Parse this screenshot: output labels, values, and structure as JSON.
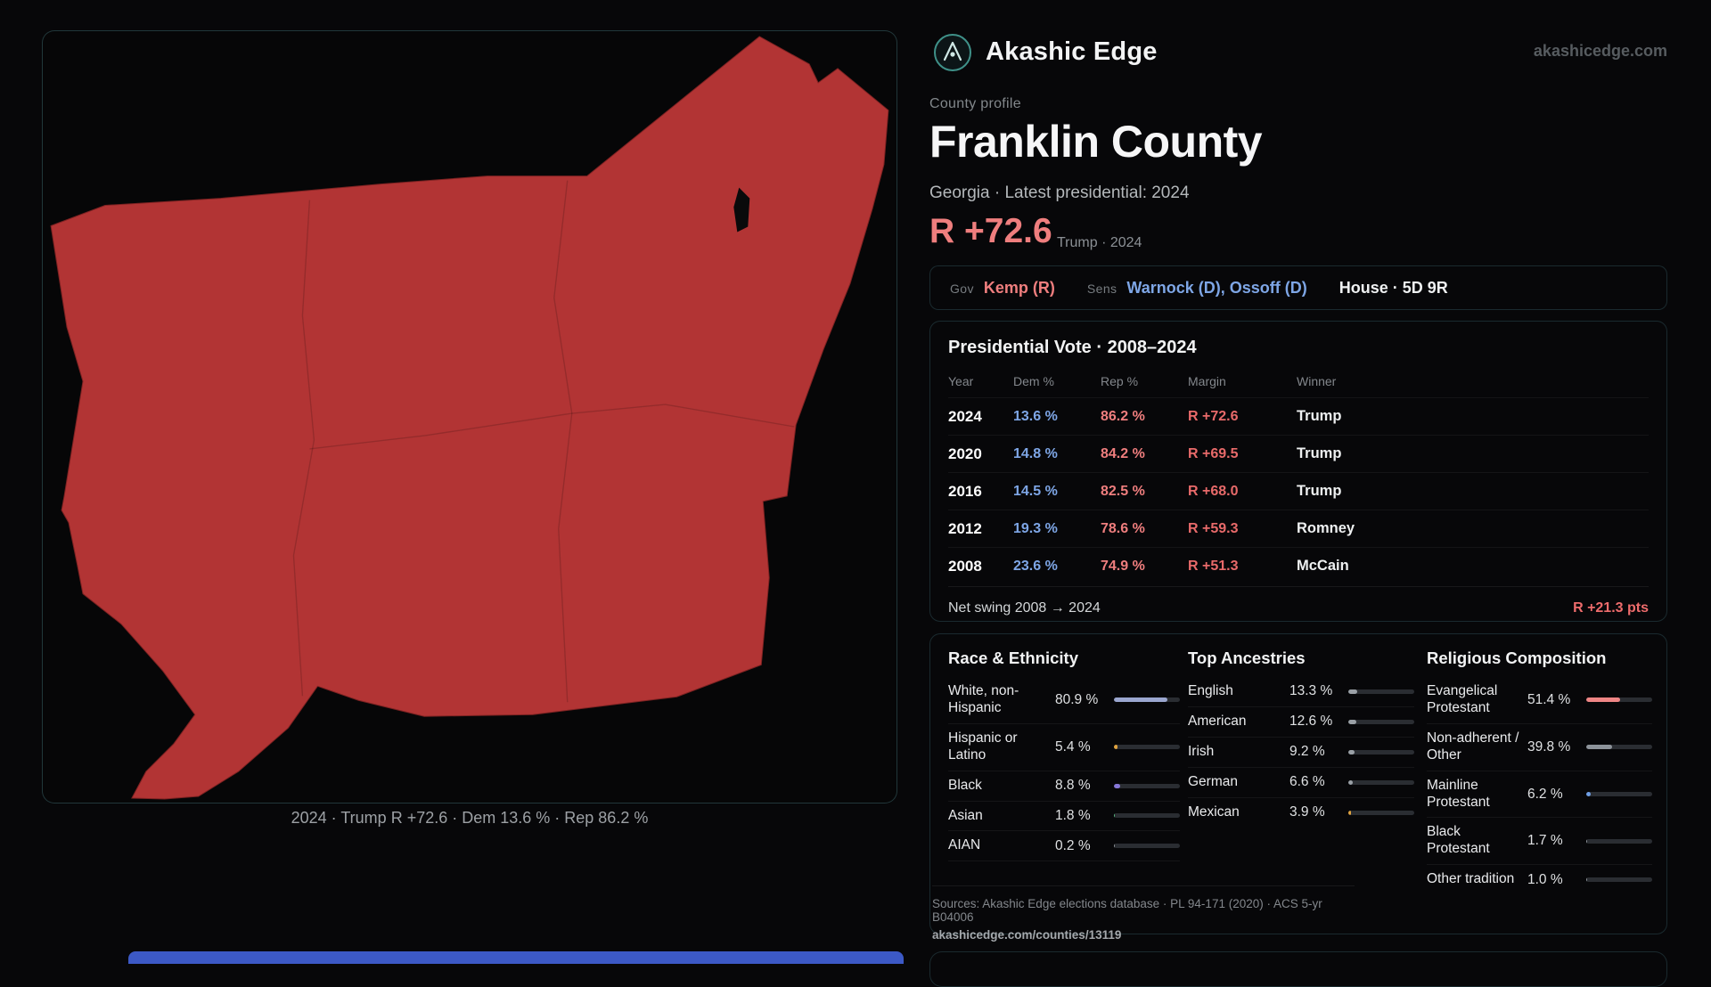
{
  "colors": {
    "rep": "#ef7e7e",
    "dem": "#7ea6e6",
    "teal": "#3f9189",
    "county": "#b23434",
    "strip": "#3c59c6"
  },
  "site": {
    "name": "Akashic Edge",
    "domain": "akashicedge.com"
  },
  "profile": {
    "kicker": "County profile",
    "title": "Franklin County",
    "subtitle": "Georgia · Latest presidential: 2024",
    "margin_big": "R +72.6",
    "margin_note": "Trump · 2024"
  },
  "officials": {
    "gov_label": "Gov",
    "gov": "Kemp (R)",
    "sens_label": "Sens",
    "sens": "Warnock (D), Ossoff (D)",
    "house": "House · 5D 9R"
  },
  "vote_table": {
    "title": "Presidential Vote · 2008–2024",
    "columns": [
      "Year",
      "Dem %",
      "Rep %",
      "Margin",
      "Winner"
    ],
    "rows": [
      {
        "year": "2024",
        "dem": "13.6 %",
        "rep": "86.2 %",
        "margin": "R +72.6",
        "winner": "Trump"
      },
      {
        "year": "2020",
        "dem": "14.8 %",
        "rep": "84.2 %",
        "margin": "R +69.5",
        "winner": "Trump"
      },
      {
        "year": "2016",
        "dem": "14.5 %",
        "rep": "82.5 %",
        "margin": "R +68.0",
        "winner": "Trump"
      },
      {
        "year": "2012",
        "dem": "19.3 %",
        "rep": "78.6 %",
        "margin": "R +59.3",
        "winner": "Romney"
      },
      {
        "year": "2008",
        "dem": "23.6 %",
        "rep": "74.9 %",
        "margin": "R +51.3",
        "winner": "McCain"
      }
    ],
    "net_swing_label": "Net swing 2008 → 2024",
    "net_swing_value": "R +21.3 pts"
  },
  "demographics": {
    "race": {
      "title": "Race & Ethnicity",
      "items": [
        {
          "label": "White, non-Hispanic",
          "value": "80.9 %",
          "pct": 80.9,
          "color": "#9aa6cf"
        },
        {
          "label": "Hispanic or Latino",
          "value": "5.4 %",
          "pct": 5.4,
          "color": "#e0a33f"
        },
        {
          "label": "Black",
          "value": "8.8 %",
          "pct": 8.8,
          "color": "#8677d8"
        },
        {
          "label": "Asian",
          "value": "1.8 %",
          "pct": 1.8,
          "color": "#57b87e"
        },
        {
          "label": "AIAN",
          "value": "0.2 %",
          "pct": 0.2,
          "color": "#8d9196"
        }
      ]
    },
    "ancestries": {
      "title": "Top Ancestries",
      "items": [
        {
          "label": "English",
          "value": "13.3 %",
          "pct": 13.3,
          "color": "#9aa0a6"
        },
        {
          "label": "American",
          "value": "12.6 %",
          "pct": 12.6,
          "color": "#9aa0a6"
        },
        {
          "label": "Irish",
          "value": "9.2 %",
          "pct": 9.2,
          "color": "#9aa0a6"
        },
        {
          "label": "German",
          "value": "6.6 %",
          "pct": 6.6,
          "color": "#9aa0a6"
        },
        {
          "label": "Mexican",
          "value": "3.9 %",
          "pct": 3.9,
          "color": "#e0a33f"
        }
      ]
    },
    "religion": {
      "title": "Religious Composition",
      "items": [
        {
          "label": "Evangelical Protestant",
          "value": "51.4 %",
          "pct": 51.4,
          "color": "#ef8585"
        },
        {
          "label": "Non-adherent / Other",
          "value": "39.8 %",
          "pct": 39.8,
          "color": "#8d939a"
        },
        {
          "label": "Mainline Protestant",
          "value": "6.2 %",
          "pct": 6.2,
          "color": "#6f9fe6"
        },
        {
          "label": "Black Protestant",
          "value": "1.7 %",
          "pct": 1.7,
          "color": "#8d939a"
        },
        {
          "label": "Other tradition",
          "value": "1.0 %",
          "pct": 1.0,
          "color": "#8d939a"
        }
      ]
    }
  },
  "map": {
    "caption": "2024 · Trump R +72.6 · Dem 13.6 % · Rep 86.2 %"
  },
  "sources": {
    "line1": "Sources: Akashic Edge elections database · PL 94-171 (2020) · ACS 5-yr B04006",
    "line2": "akashicedge.com/counties/13119"
  }
}
